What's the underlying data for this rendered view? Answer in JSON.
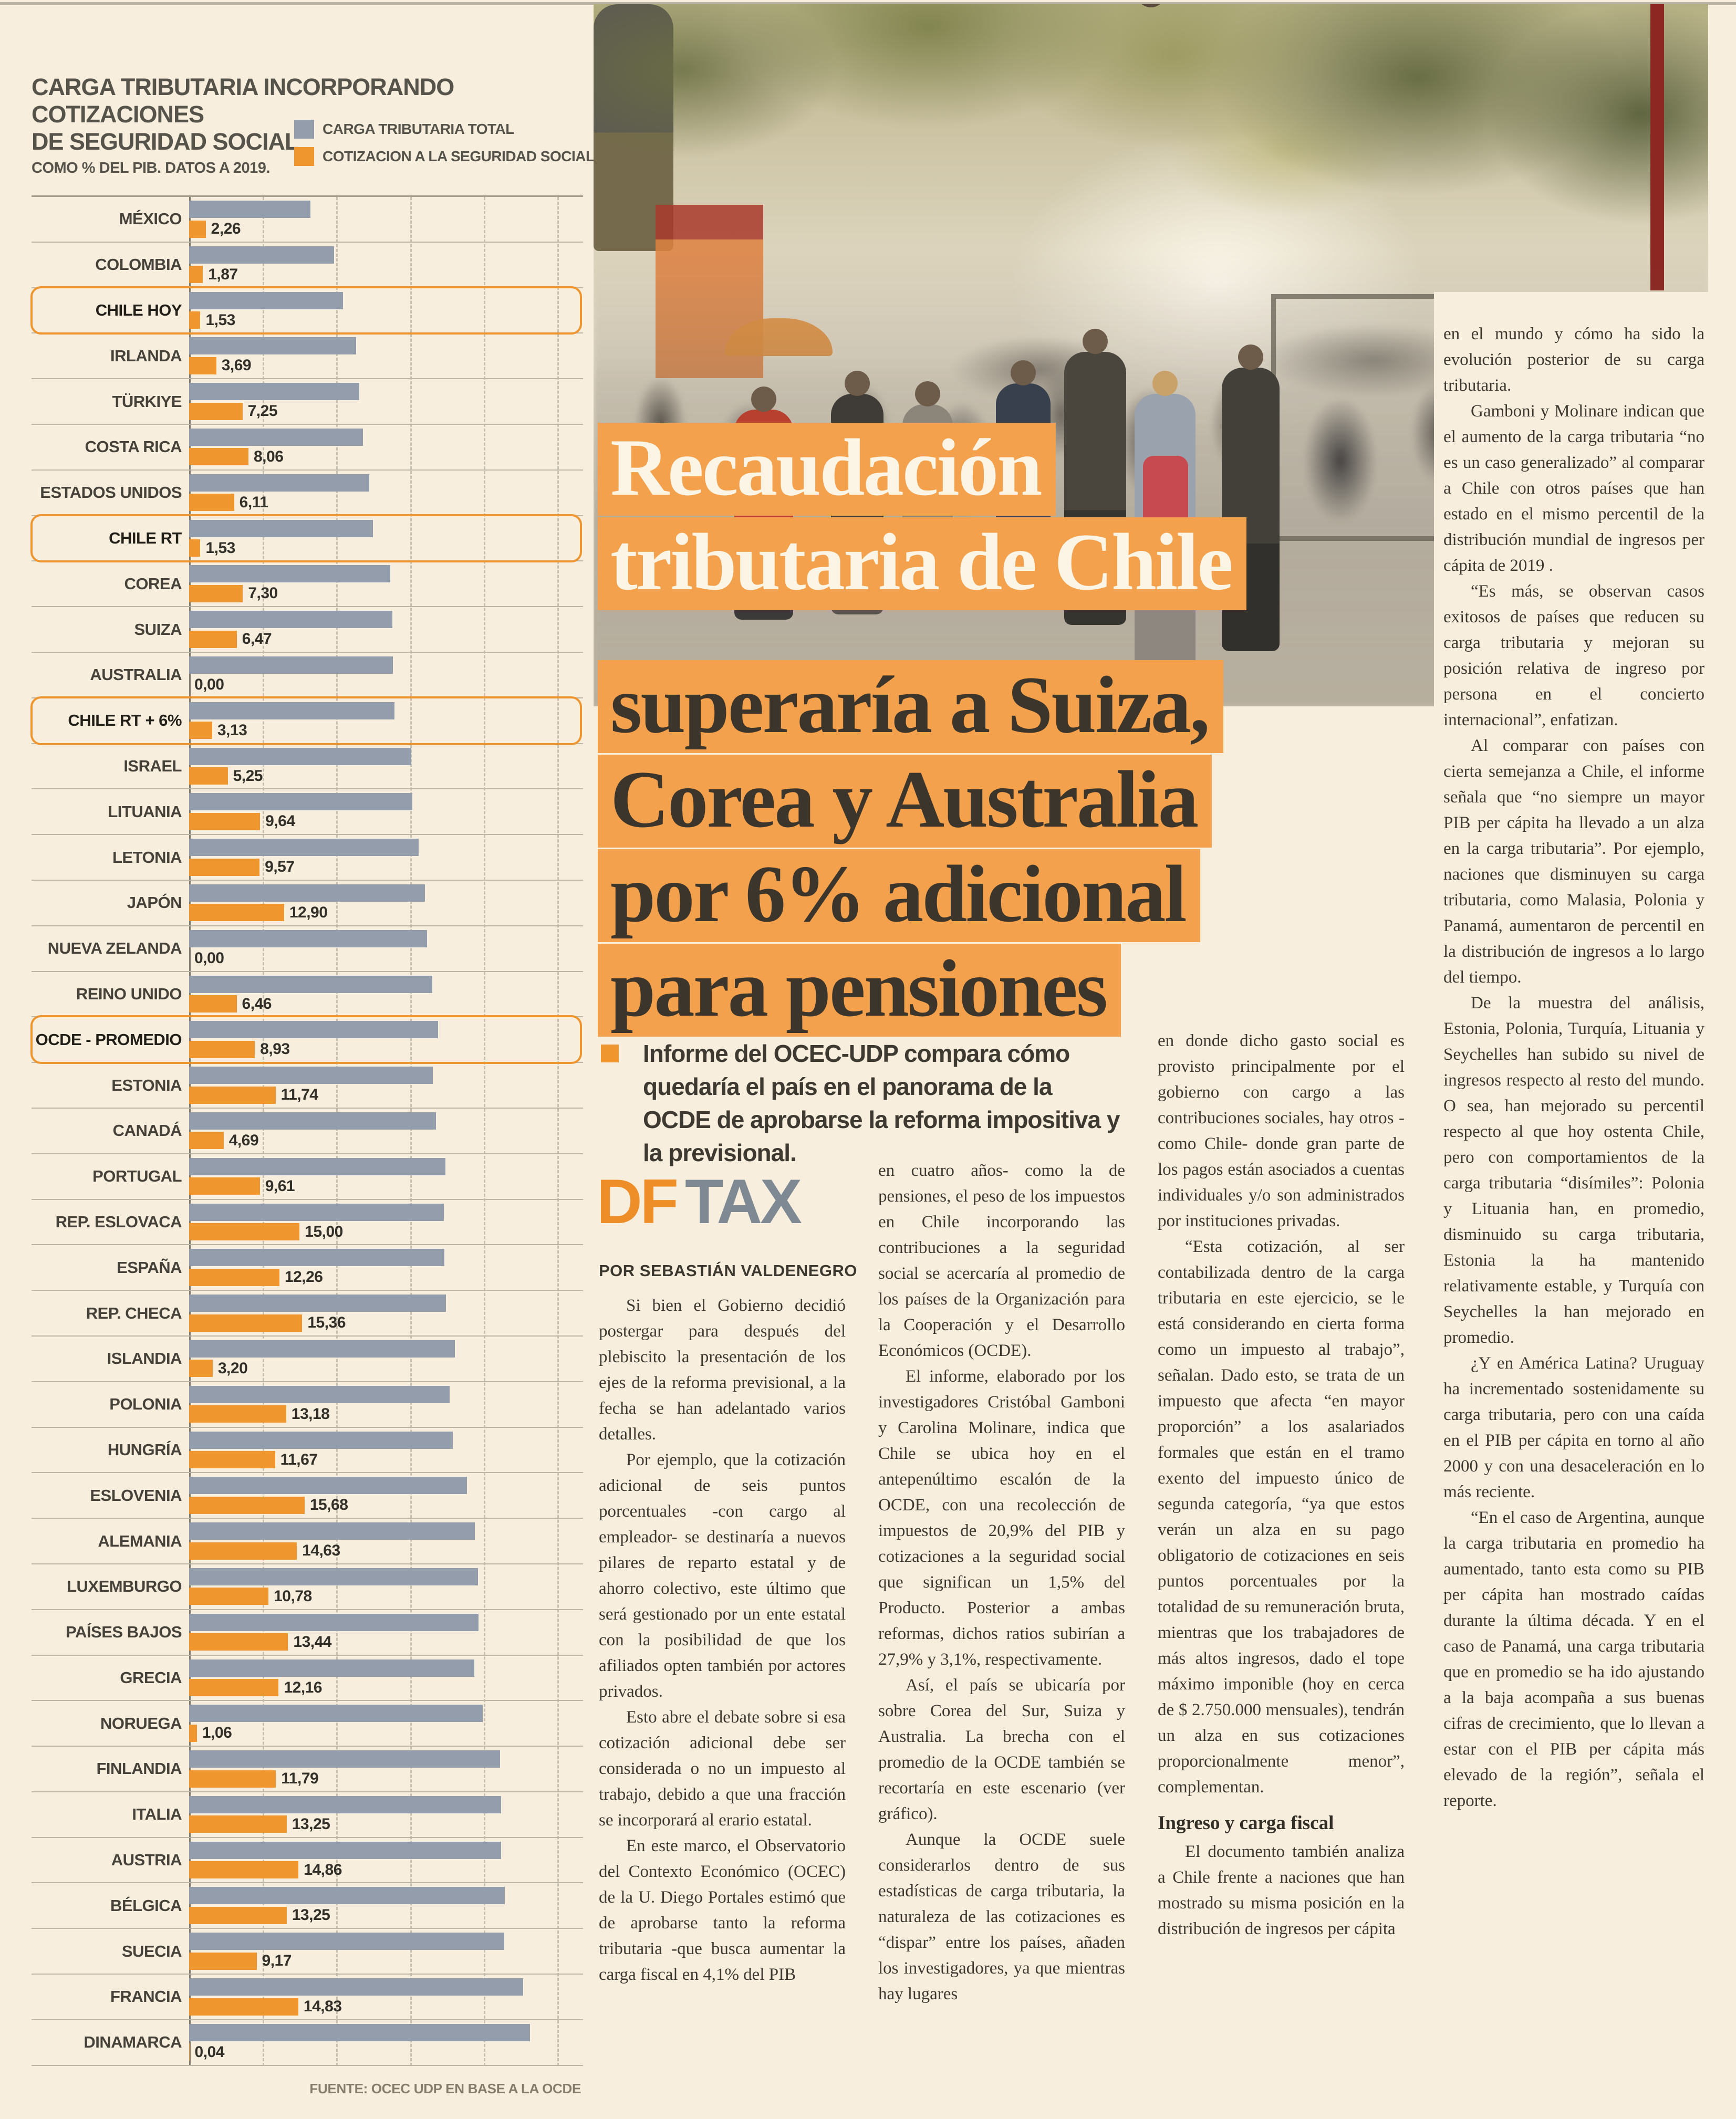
{
  "chart": {
    "title_line1": "CARGA TRIBUTARIA INCORPORANDO COTIZACIONES",
    "title_line2": "DE SEGURIDAD SOCIAL",
    "subtitle": "COMO % DEL PIB. DATOS A 2019.",
    "legend": [
      {
        "label": "CARGA TRIBUTARIA TOTAL",
        "color": "#939dab"
      },
      {
        "label": "COTIZACION A LA SEGURIDAD SOCIAL",
        "color": "#f0962e"
      }
    ],
    "source": "FUENTE: OCEC UDP EN BASE A LA OCDE",
    "chart_data": {
      "type": "bar",
      "orientation": "horizontal",
      "title": "CARGA TRIBUTARIA INCORPORANDO COTIZACIONES DE SEGURIDAD SOCIAL",
      "subtitle": "COMO % DEL PIB. DATOS A 2019.",
      "xlim": [
        0,
        53.5
      ],
      "gridline_step": 10,
      "grid": "dashed-vertical",
      "legend_position": "top-right",
      "categories": [
        "MÉXICO",
        "COLOMBIA",
        "CHILE HOY",
        "IRLANDA",
        "TÜRKIYE",
        "COSTA RICA",
        "ESTADOS UNIDOS",
        "CHILE RT",
        "COREA",
        "SUIZA",
        "AUSTRALIA",
        "CHILE RT + 6%",
        "ISRAEL",
        "LITUANIA",
        "LETONIA",
        "JAPÓN",
        "NUEVA ZELANDA",
        "REINO UNIDO",
        "OCDE - PROMEDIO",
        "ESTONIA",
        "CANADÁ",
        "PORTUGAL",
        "REP. ESLOVACA",
        "ESPAÑA",
        "REP. CHECA",
        "ISLANDIA",
        "POLONIA",
        "HUNGRÍA",
        "ESLOVENIA",
        "ALEMANIA",
        "LUXEMBURGO",
        "PAÍSES BAJOS",
        "GRECIA",
        "NORUEGA",
        "FINLANDIA",
        "ITALIA",
        "AUSTRIA",
        "BÉLGICA",
        "SUECIA",
        "FRANCIA",
        "DINAMARCA"
      ],
      "series": [
        {
          "name": "CARGA TRIBUTARIA TOTAL",
          "color": "#939dab",
          "values_estimated_from_bar_lengths": true,
          "values": [
            16.5,
            19.7,
            20.9,
            22.7,
            23.1,
            23.6,
            24.5,
            25.0,
            27.3,
            27.6,
            27.7,
            27.9,
            30.2,
            30.3,
            31.2,
            32.0,
            32.3,
            33.0,
            33.8,
            33.1,
            33.5,
            34.8,
            34.6,
            34.7,
            34.9,
            36.1,
            35.4,
            35.8,
            37.7,
            38.8,
            39.2,
            39.3,
            38.7,
            39.9,
            42.2,
            42.4,
            42.4,
            42.9,
            42.8,
            45.4,
            46.3
          ]
        },
        {
          "name": "COTIZACION A LA SEGURIDAD SOCIAL",
          "color": "#f0962e",
          "values": [
            2.26,
            1.87,
            1.53,
            3.69,
            7.25,
            8.06,
            6.11,
            1.53,
            7.3,
            6.47,
            0.0,
            3.13,
            5.25,
            9.64,
            9.57,
            12.9,
            0.0,
            6.46,
            8.93,
            11.74,
            4.69,
            9.61,
            15.0,
            12.26,
            15.36,
            3.2,
            13.18,
            11.67,
            15.68,
            14.63,
            10.78,
            13.44,
            12.16,
            1.06,
            11.79,
            13.25,
            14.86,
            13.25,
            9.17,
            14.83,
            0.04
          ],
          "labels": [
            "2,26",
            "1,87",
            "1,53",
            "3,69",
            "7,25",
            "8,06",
            "6,11",
            "1,53",
            "7,30",
            "6,47",
            "0,00",
            "3,13",
            "5,25",
            "9,64",
            "9,57",
            "12,90",
            "0,00",
            "6,46",
            "8,93",
            "11,74",
            "4,69",
            "9,61",
            "15,00",
            "12,26",
            "15,36",
            "3,20",
            "13,18",
            "11,67",
            "15,68",
            "14,63",
            "10,78",
            "13,44",
            "12,16",
            "1,06",
            "11,79",
            "13,25",
            "14,86",
            "13,25",
            "9,17",
            "14,83",
            "0,04"
          ]
        }
      ],
      "highlighted_rows": [
        2,
        7,
        11,
        18
      ],
      "source": "FUENTE: OCEC UDP EN BASE A LA OCDE"
    }
  },
  "headline": {
    "lines": [
      {
        "text": "Recaudación",
        "style": "light"
      },
      {
        "text": "tributaria de Chile",
        "style": "light"
      },
      {
        "text": "superaría a Suiza,",
        "style": "dark"
      },
      {
        "text": "Corea y Australia",
        "style": "dark"
      },
      {
        "text": "por 6% adicional",
        "style": "dark"
      },
      {
        "text": "para pensiones",
        "style": "dark"
      }
    ],
    "highlight_color": "#f3a14c"
  },
  "lede": {
    "text": "Informe del OCEC-UDP compara cómo quedaría el país en el panorama de la OCDE de aprobarse la reforma impositiva y la previsional."
  },
  "brand": {
    "df": "DF",
    "tax": "TAX",
    "df_color": "#ee8e29",
    "tax_color": "#7e8994"
  },
  "byline": "POR SEBASTIÁN VALDENEGRO",
  "article": {
    "columns": [
      {
        "blocks": [
          {
            "type": "p",
            "indent": true,
            "text": "Si bien el Gobierno decidió postergar para después del plebiscito la presentación de los ejes de la reforma previsional, a la fecha se han adelantado varios detalles."
          },
          {
            "type": "p",
            "indent": true,
            "text": "Por ejemplo, que la cotización adicional de seis puntos porcentuales -con cargo al empleador- se destinaría a nuevos pilares de reparto estatal y de ahorro colectivo, este último que será gestionado por un ente estatal con la posibilidad de que los afiliados opten también por actores privados."
          },
          {
            "type": "p",
            "indent": true,
            "text": "Esto abre el debate sobre si esa cotización adicional debe ser considerada o no un impuesto al trabajo, debido a que una fracción se incorporará al erario estatal."
          },
          {
            "type": "p",
            "indent": true,
            "text": "En este marco, el Observatorio del Contexto Económico (OCEC) de la U. Diego Portales estimó que de aprobarse tanto la reforma tributaria -que busca aumentar la carga fiscal en 4,1% del PIB"
          }
        ]
      },
      {
        "blocks": [
          {
            "type": "p",
            "indent": false,
            "text": "en cuatro años- como la de pensiones, el peso de los impuestos en Chile incorporando las contribuciones a la seguridad social se acercaría al promedio de los países de la Organización para la Cooperación y el Desarrollo Económicos (OCDE)."
          },
          {
            "type": "p",
            "indent": true,
            "text": "El informe, elaborado por los investigadores Cristóbal Gamboni y Carolina Molinare, indica que Chile se ubica hoy en el antepenúltimo escalón de la OCDE, con una recolección de impuestos de 20,9% del PIB y cotizaciones a la seguridad social que significan un 1,5% del Producto. Posterior a ambas reformas, dichos ratios subirían a 27,9% y 3,1%, respectivamente."
          },
          {
            "type": "p",
            "indent": true,
            "text": "Así, el país se ubicaría por sobre Corea del Sur, Suiza y Australia. La brecha con el promedio de la OCDE también se recortaría en este escenario (ver gráfico)."
          },
          {
            "type": "p",
            "indent": true,
            "text": "Aunque la OCDE suele considerarlos dentro de sus estadísticas de carga tributaria, la naturaleza de las cotizaciones es “dispar” entre los países, añaden los investigadores, ya que mientras hay lugares"
          }
        ]
      },
      {
        "blocks": [
          {
            "type": "p",
            "indent": false,
            "text": "en donde dicho gasto social es provisto principalmente por el gobierno con cargo a las contribuciones sociales, hay otros -como Chile- donde gran parte de los pagos están asociados a cuentas individuales y/o son administrados por instituciones privadas."
          },
          {
            "type": "p",
            "indent": true,
            "text": "“Esta cotización, al ser contabilizada dentro de la carga tributaria en este ejercicio, se le está considerando en cierta forma como un impuesto al trabajo”, señalan. Dado esto, se trata de un impuesto que afecta “en mayor proporción” a los asalariados formales que están en el tramo exento del impuesto único de segunda categoría, “ya que estos verán un alza en su pago obligatorio de cotizaciones en seis puntos porcentuales por la totalidad de su remuneración bruta, mientras que los trabajadores de más altos ingresos, dado el tope máximo imponible (hoy en cerca de $ 2.750.000 mensuales), tendrán un alza en sus cotizaciones proporcionalmente menor”, complementan."
          },
          {
            "type": "h",
            "text": "Ingreso y carga fiscal"
          },
          {
            "type": "p",
            "indent": true,
            "text": "El documento también analiza a Chile frente a naciones que han mostrado su misma posición en la distribución de ingresos per cápita"
          }
        ]
      },
      {
        "blocks": [
          {
            "type": "p",
            "indent": false,
            "text": "en el mundo y cómo ha sido la evolución posterior de su carga tributaria."
          },
          {
            "type": "p",
            "indent": true,
            "text": "Gamboni y Molinare indican que el aumento de la carga tributaria “no es un caso generalizado” al comparar a Chile con otros países que han estado en el mismo percentil de la distribución mundial de ingresos per cápita de 2019 ."
          },
          {
            "type": "p",
            "indent": true,
            "text": "“Es más, se observan casos exitosos de países que reducen su carga tributaria y mejoran su posición relativa de ingreso por persona en el concierto internacional”, enfatizan."
          },
          {
            "type": "p",
            "indent": true,
            "text": "Al comparar con países con cierta semejanza a Chile, el informe señala que “no siempre un mayor PIB per cápita ha llevado a un alza en la carga tributaria”. Por ejemplo, naciones que disminuyen su carga tributaria, como Malasia, Polonia y Panamá, aumentaron de percentil en la distribución de ingresos a lo largo del tiempo."
          },
          {
            "type": "p",
            "indent": true,
            "text": "De la muestra del análisis, Estonia, Polonia, Turquía, Lituania y Seychelles han subido su nivel de ingresos respecto al resto del mundo. O sea, han mejorado su percentil respecto al que hoy ostenta Chile, pero con comportamientos de la carga tributaria “disímiles”: Polonia y Lituania han, en promedio, disminuido su carga tributaria, Estonia la ha mantenido relativamente estable, y Turquía con Seychelles la han mejorado en promedio."
          },
          {
            "type": "p",
            "indent": true,
            "text": "¿Y en América Latina? Uruguay ha incrementado sostenidamente su carga tributaria, pero con una caída en el PIB per cápita en torno al año 2000 y con una desaceleración en lo más reciente."
          },
          {
            "type": "p",
            "indent": true,
            "text": "“En el caso de Argentina, aunque la carga tributaria en promedio ha aumentado, tanto esta como su PIB per cápita han mostrado caídas durante la última década. Y en el caso de Panamá, una carga tributaria que en promedio se ha ido ajustando a la baja acompaña a sus buenas cifras de crecimiento, que lo llevan a estar con el PIB per cápita más elevado de la región”, señala el reporte."
          }
        ]
      }
    ]
  }
}
